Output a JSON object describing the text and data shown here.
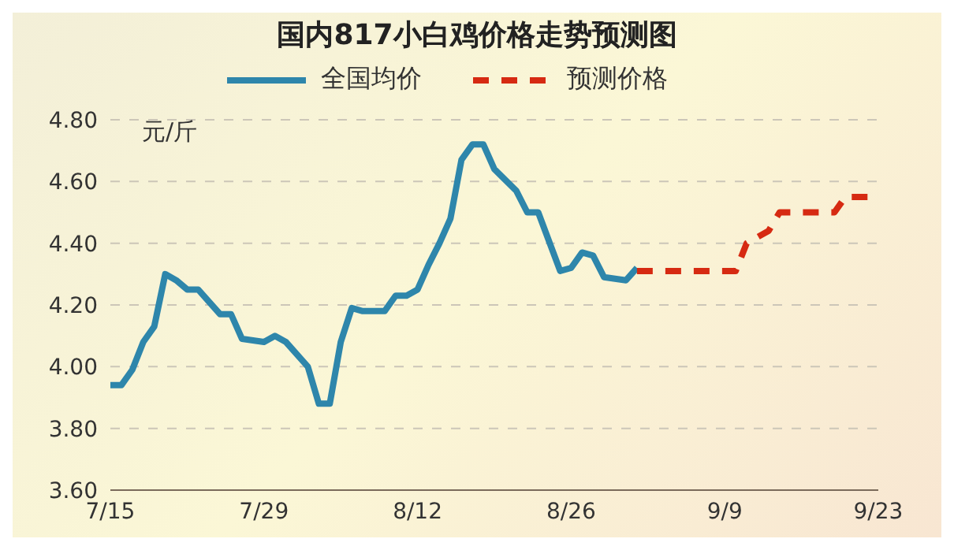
{
  "chart_data": {
    "type": "line",
    "title": "国内817小白鸡价格走势预测图",
    "ylabel": "元/斤",
    "xlim": [
      "--07-15",
      "--09-23"
    ],
    "xticks": [
      {
        "value": "--07-15",
        "label": "7/15"
      },
      {
        "value": "--07-29",
        "label": "7/29"
      },
      {
        "value": "--08-12",
        "label": "8/12"
      },
      {
        "value": "--08-26",
        "label": "8/26"
      },
      {
        "value": "--09-09",
        "label": "9/9"
      },
      {
        "value": "--09-23",
        "label": "9/23"
      }
    ],
    "ylim": [
      3.6,
      4.8
    ],
    "yticks": [
      {
        "value": 3.6,
        "label": "3.60"
      },
      {
        "value": 3.8,
        "label": "3.80"
      },
      {
        "value": 4.0,
        "label": "4.00"
      },
      {
        "value": 4.2,
        "label": "4.20"
      },
      {
        "value": 4.4,
        "label": "4.40"
      },
      {
        "value": 4.6,
        "label": "4.60"
      },
      {
        "value": 4.8,
        "label": "4.80"
      }
    ],
    "grid": "y",
    "legend": "top",
    "marker": "none",
    "series": [
      {
        "name": "全国均价",
        "color": "#2e86ab",
        "line_style": "solid",
        "x": [
          "--07-15",
          "--07-16",
          "--07-17",
          "--07-18",
          "--07-19",
          "--07-20",
          "--07-21",
          "--07-22",
          "--07-23",
          "--07-25",
          "--07-26",
          "--07-27",
          "--07-29",
          "--07-30",
          "--07-31",
          "--08-02",
          "--08-03",
          "--08-04",
          "--08-05",
          "--08-06",
          "--08-07",
          "--08-09",
          "--08-10",
          "--08-11",
          "--08-12",
          "--08-13",
          "--08-14",
          "--08-15",
          "--08-16",
          "--08-17",
          "--08-18",
          "--08-19",
          "--08-21",
          "--08-22",
          "--08-23",
          "--08-25",
          "--08-26",
          "--08-27",
          "--08-28",
          "--08-29",
          "--08-31",
          "--09-01"
        ],
        "values": [
          3.94,
          3.94,
          3.99,
          4.08,
          4.13,
          4.3,
          4.28,
          4.25,
          4.25,
          4.17,
          4.17,
          4.09,
          4.08,
          4.1,
          4.08,
          4.0,
          3.88,
          3.88,
          4.08,
          4.19,
          4.18,
          4.18,
          4.23,
          4.23,
          4.25,
          4.33,
          4.4,
          4.48,
          4.67,
          4.72,
          4.72,
          4.64,
          4.57,
          4.5,
          4.5,
          4.31,
          4.32,
          4.37,
          4.36,
          4.29,
          4.28,
          4.32
        ]
      },
      {
        "name": "预测价格",
        "color": "#d62a12",
        "line_style": "dashed",
        "x": [
          "--09-01",
          "--09-10",
          "--09-11",
          "--09-13",
          "--09-14",
          "--09-19",
          "--09-20",
          "--09-23"
        ],
        "values": [
          4.31,
          4.31,
          4.4,
          4.44,
          4.5,
          4.5,
          4.55,
          4.55
        ]
      }
    ]
  }
}
